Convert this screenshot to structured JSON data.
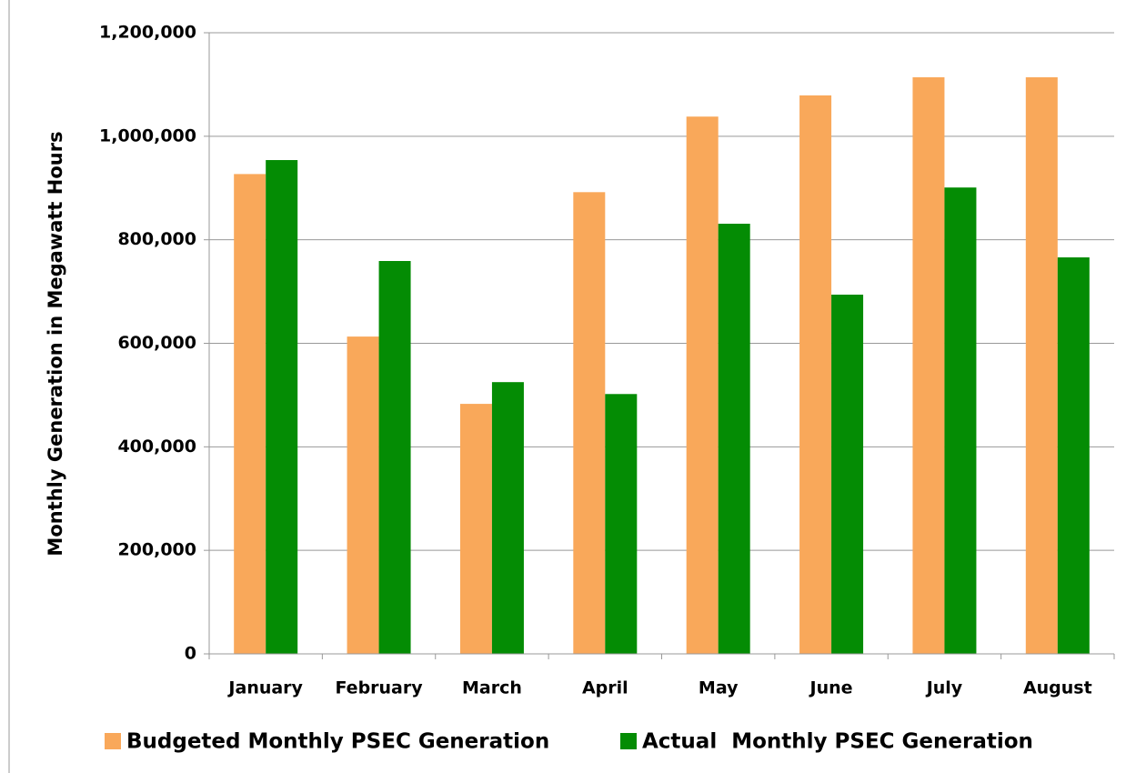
{
  "chart_data": {
    "type": "bar",
    "y_label": "Monthly Generation in Megawatt Hours",
    "categories": [
      "January",
      "February",
      "March",
      "April",
      "May",
      "June",
      "July",
      "August"
    ],
    "series": [
      {
        "name": "Budgeted Monthly PSEC Generation",
        "color": "#f9a85a",
        "values": [
          927000,
          613000,
          483000,
          892000,
          1038000,
          1079000,
          1114000,
          1114000
        ]
      },
      {
        "name": "Actual  Monthly PSEC Generation",
        "color": "#048c04",
        "values": [
          954000,
          759000,
          525000,
          502000,
          831000,
          694000,
          901000,
          766000
        ]
      }
    ],
    "ylim": [
      0,
      1200000
    ],
    "yticks": [
      0,
      {
        "value": 200000,
        "label": "200,000"
      },
      {
        "value": 400000,
        "label": "400,000"
      },
      {
        "value": 600000,
        "label": "600,000"
      },
      {
        "value": 800000,
        "label": "800,000"
      },
      {
        "value": 1000000,
        "label": "1,000,000"
      },
      {
        "value": 1200000,
        "label": "1,200,000"
      }
    ],
    "grid": true,
    "legend": "bottom"
  }
}
